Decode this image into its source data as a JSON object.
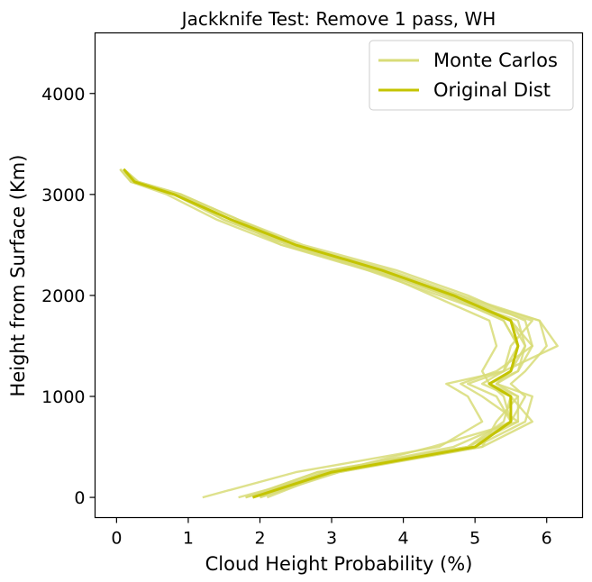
{
  "chart_data": {
    "type": "line",
    "title": "Jackknife Test: Remove 1 pass, WH",
    "xlabel": "Cloud Height Probability (%)",
    "ylabel": "Height from Surface (Km)",
    "xlim": [
      -0.3,
      6.5
    ],
    "ylim": [
      -200,
      4600
    ],
    "xticks": [
      0,
      1,
      2,
      3,
      4,
      5,
      6
    ],
    "yticks": [
      0,
      1000,
      2000,
      3000,
      4000
    ],
    "grid": false,
    "legend_position": "top-right",
    "colors": {
      "monte_carlo": "#d8dc78",
      "original": "#c4c400"
    },
    "legend": [
      "Monte Carlos",
      "Original Dist"
    ],
    "heights": [
      0,
      250,
      500,
      750,
      1000,
      1125,
      1250,
      1500,
      1750,
      2000,
      2250,
      2500,
      2750,
      3000,
      3125,
      3250
    ],
    "series": [
      {
        "name": "Monte Carlos",
        "role": "monte_carlo",
        "values": [
          1.8,
          2.8,
          4.9,
          5.5,
          5.4,
          5.2,
          5.5,
          5.7,
          5.6,
          4.6,
          3.6,
          2.3,
          1.6,
          0.8,
          0.25,
          0.1
        ]
      },
      {
        "role": "monte_carlo",
        "values": [
          1.2,
          2.5,
          4.5,
          5.1,
          4.9,
          4.6,
          5.4,
          6.15,
          5.9,
          4.7,
          3.7,
          2.4,
          1.5,
          0.8,
          0.2,
          0.05
        ]
      },
      {
        "role": "monte_carlo",
        "values": [
          1.7,
          3.0,
          4.4,
          5.6,
          5.1,
          4.8,
          5.3,
          5.8,
          5.5,
          4.5,
          3.5,
          2.3,
          1.4,
          0.7,
          0.2,
          0.05
        ]
      },
      {
        "role": "monte_carlo",
        "values": [
          2.0,
          3.1,
          5.0,
          5.7,
          5.8,
          5.3,
          5.6,
          5.8,
          5.7,
          4.9,
          3.9,
          2.6,
          1.7,
          0.9,
          0.3,
          0.1
        ]
      },
      {
        "role": "monte_carlo",
        "values": [
          1.9,
          2.9,
          4.9,
          5.4,
          5.5,
          5.1,
          5.4,
          5.6,
          5.4,
          4.7,
          3.6,
          2.4,
          1.6,
          0.8,
          0.25,
          0.1
        ]
      },
      {
        "role": "monte_carlo",
        "values": [
          1.8,
          3.1,
          5.1,
          5.8,
          5.5,
          5.2,
          5.1,
          5.3,
          5.2,
          4.4,
          3.6,
          2.5,
          1.7,
          0.9,
          0.3,
          0.1
        ]
      },
      {
        "role": "monte_carlo",
        "values": [
          2.1,
          3.0,
          5.0,
          5.5,
          5.7,
          5.5,
          5.7,
          6.0,
          5.9,
          4.8,
          3.8,
          2.5,
          1.7,
          0.9,
          0.25,
          0.1
        ]
      },
      {
        "role": "monte_carlo",
        "values": [
          1.9,
          2.9,
          4.7,
          5.5,
          5.3,
          4.9,
          5.4,
          5.5,
          5.8,
          4.6,
          3.7,
          2.5,
          1.6,
          0.85,
          0.25,
          0.1
        ]
      },
      {
        "role": "monte_carlo",
        "values": [
          2.0,
          3.0,
          5.1,
          5.3,
          5.6,
          5.2,
          5.6,
          5.7,
          5.5,
          4.8,
          3.5,
          2.4,
          1.5,
          0.8,
          0.3,
          0.1
        ]
      },
      {
        "role": "monte_carlo",
        "values": [
          1.8,
          2.8,
          4.9,
          5.6,
          5.6,
          5.3,
          5.5,
          5.6,
          5.4,
          4.6,
          3.6,
          2.5,
          1.6,
          0.8,
          0.2,
          0.1
        ]
      },
      {
        "name": "Original Dist",
        "role": "original",
        "values": [
          1.9,
          3.0,
          5.0,
          5.5,
          5.5,
          5.2,
          5.5,
          5.6,
          5.5,
          4.7,
          3.7,
          2.5,
          1.6,
          0.8,
          0.25,
          0.1
        ]
      }
    ]
  }
}
